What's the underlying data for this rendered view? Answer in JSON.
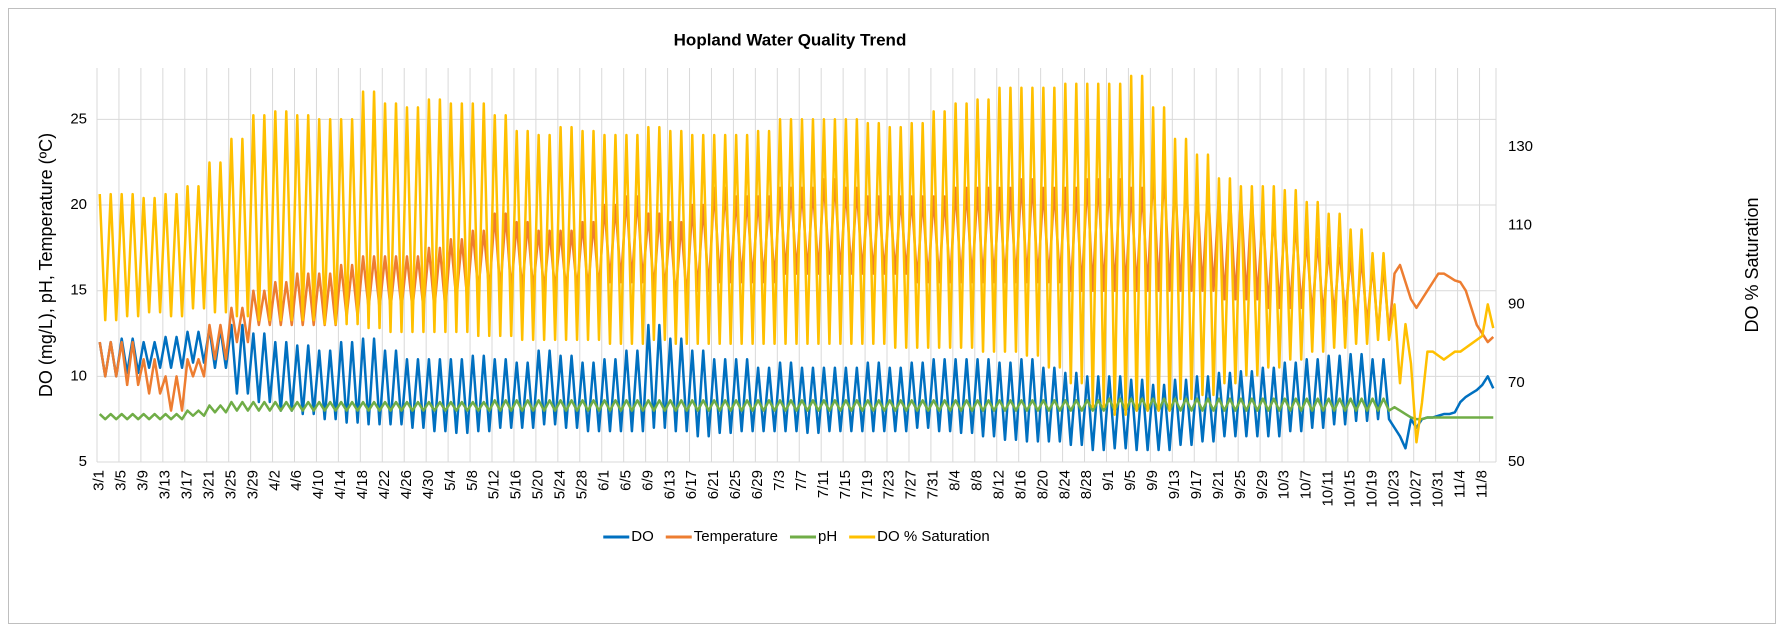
{
  "chart_data": {
    "type": "line",
    "title": "Hopland Water Quality Trend",
    "y_label": "DO (mg/L), pH, Temperature (ºC)",
    "y2_label": "DO % Saturation",
    "ylim": [
      5,
      28
    ],
    "yticks": [
      5,
      10,
      15,
      20,
      25
    ],
    "y2lim": [
      50,
      150
    ],
    "y2ticks": [
      50,
      70,
      90,
      110,
      130
    ],
    "grid": true,
    "legend": "bottom",
    "categories": [
      "3/1",
      null,
      null,
      null,
      "3/5",
      null,
      null,
      null,
      "3/9",
      null,
      null,
      null,
      "3/13",
      null,
      null,
      null,
      "3/17",
      null,
      null,
      null,
      "3/21",
      null,
      null,
      null,
      "3/25",
      null,
      null,
      null,
      "3/29",
      null,
      null,
      null,
      "4/2",
      null,
      null,
      null,
      "4/6",
      null,
      null,
      null,
      "4/10",
      null,
      null,
      null,
      "4/14",
      null,
      null,
      null,
      "4/18",
      null,
      null,
      null,
      "4/22",
      null,
      null,
      null,
      "4/26",
      null,
      null,
      null,
      "4/30",
      null,
      null,
      null,
      "5/4",
      null,
      null,
      null,
      "5/8",
      null,
      null,
      null,
      "5/12",
      null,
      null,
      null,
      "5/16",
      null,
      null,
      null,
      "5/20",
      null,
      null,
      null,
      "5/24",
      null,
      null,
      null,
      "5/28",
      null,
      null,
      null,
      "6/1",
      null,
      null,
      null,
      "6/5",
      null,
      null,
      null,
      "6/9",
      null,
      null,
      null,
      "6/13",
      null,
      null,
      null,
      "6/17",
      null,
      null,
      null,
      "6/21",
      null,
      null,
      null,
      "6/25",
      null,
      null,
      null,
      "6/29",
      null,
      null,
      null,
      "7/3",
      null,
      null,
      null,
      "7/7",
      null,
      null,
      null,
      "7/11",
      null,
      null,
      null,
      "7/15",
      null,
      null,
      null,
      "7/19",
      null,
      null,
      null,
      "7/23",
      null,
      null,
      null,
      "7/27",
      null,
      null,
      null,
      "7/31",
      null,
      null,
      null,
      "8/4",
      null,
      null,
      null,
      "8/8",
      null,
      null,
      null,
      "8/12",
      null,
      null,
      null,
      "8/16",
      null,
      null,
      null,
      "8/20",
      null,
      null,
      null,
      "8/24",
      null,
      null,
      null,
      "8/28",
      null,
      null,
      null,
      "9/1",
      null,
      null,
      null,
      "9/5",
      null,
      null,
      null,
      "9/9",
      null,
      null,
      null,
      "9/13",
      null,
      null,
      null,
      "9/17",
      null,
      null,
      null,
      "9/21",
      null,
      null,
      null,
      "9/25",
      null,
      null,
      null,
      "9/29",
      null,
      null,
      null,
      "10/3",
      null,
      null,
      null,
      "10/7",
      null,
      null,
      null,
      "10/11",
      null,
      null,
      null,
      "10/15",
      null,
      null,
      null,
      "10/19",
      null,
      null,
      null,
      "10/23",
      null,
      null,
      null,
      "10/27",
      null,
      null,
      null,
      "10/31",
      null,
      null,
      null,
      "11/4",
      null,
      null,
      null,
      "11/8",
      null,
      null
    ],
    "series": [
      {
        "name": "DO",
        "color": "#0070c0",
        "values": [
          12,
          10,
          12,
          10,
          12.2,
          10.2,
          12.2,
          10.2,
          12,
          10.5,
          12,
          10.5,
          12.3,
          10.5,
          12.3,
          10.5,
          12.6,
          10.8,
          12.6,
          10.8,
          12.8,
          10.5,
          12.8,
          10.5,
          13,
          9,
          13,
          9,
          12.5,
          8.5,
          12.5,
          8.5,
          12,
          8,
          12,
          8,
          11.8,
          7.8,
          11.8,
          7.8,
          11.5,
          7.5,
          11.5,
          7.5,
          12,
          7.3,
          12,
          7.3,
          12.2,
          7.2,
          12.2,
          7.2,
          11.5,
          7.2,
          11.5,
          7.2,
          11,
          7,
          11,
          7,
          11,
          6.8,
          11,
          6.8,
          11,
          6.7,
          11,
          6.7,
          11.2,
          6.8,
          11.2,
          6.8,
          11,
          7,
          11,
          7,
          10.8,
          7,
          10.8,
          7,
          11.5,
          7.2,
          11.5,
          7.2,
          11.2,
          7,
          11.2,
          7,
          10.8,
          6.8,
          10.8,
          6.8,
          11,
          6.8,
          11,
          6.8,
          11.5,
          6.8,
          11.5,
          6.8,
          13,
          7,
          13,
          7,
          12.2,
          6.8,
          12.2,
          6.8,
          11.5,
          6.5,
          11.5,
          6.5,
          11,
          6.7,
          11,
          6.7,
          11,
          6.8,
          11,
          6.8,
          10.5,
          6.8,
          10.5,
          6.8,
          10.8,
          6.8,
          10.8,
          6.8,
          10.5,
          6.7,
          10.5,
          6.7,
          10.5,
          6.8,
          10.5,
          6.8,
          10.5,
          6.8,
          10.5,
          6.8,
          10.8,
          6.8,
          10.8,
          6.8,
          10.5,
          6.8,
          10.5,
          6.8,
          10.8,
          7,
          10.8,
          7,
          11,
          6.8,
          11,
          6.8,
          11,
          6.7,
          11,
          6.7,
          11,
          6.5,
          11,
          6.5,
          10.8,
          6.3,
          10.8,
          6.3,
          11,
          6.2,
          11,
          6.2,
          10.5,
          6.2,
          10.5,
          6.2,
          10.2,
          6,
          10.2,
          6,
          10,
          5.7,
          10,
          5.7,
          10,
          5.8,
          10,
          5.8,
          9.8,
          5.7,
          9.8,
          5.7,
          9.5,
          5.7,
          9.5,
          5.7,
          9.8,
          6,
          9.8,
          6,
          10,
          6.2,
          10,
          6.2,
          10.2,
          6.5,
          10.2,
          6.5,
          10.3,
          6.5,
          10.3,
          6.5,
          10.5,
          6.5,
          10.5,
          6.5,
          10.8,
          6.8,
          10.8,
          6.8,
          11,
          7,
          11,
          7,
          11.2,
          7.2,
          11.2,
          7.2,
          11.3,
          7.4,
          11.3,
          7.4,
          11,
          7.5,
          11,
          7.5,
          7,
          6.5,
          5.8,
          7.5,
          7,
          7.5,
          7.6,
          7.6,
          7.7,
          7.8,
          7.8,
          7.9,
          8.5,
          8.8,
          9,
          9.2,
          9.5,
          10,
          9.3
        ]
      },
      {
        "name": "Temperature",
        "color": "#ed7d31",
        "values": [
          12,
          10,
          12,
          10,
          12,
          9.5,
          12,
          9.5,
          11,
          9,
          11,
          9,
          10,
          8,
          10,
          8,
          11,
          10,
          11,
          10,
          13,
          11,
          13,
          11,
          14,
          12,
          14,
          12,
          15,
          13,
          15,
          13,
          15.5,
          13,
          15.5,
          13,
          16,
          13,
          16,
          13,
          16,
          13,
          16,
          13,
          16.5,
          13.5,
          16.5,
          13.5,
          17,
          14,
          17,
          14,
          17,
          14,
          17,
          14,
          17,
          14,
          17,
          14,
          17.5,
          14,
          17.5,
          14,
          18,
          14.5,
          18,
          14.5,
          18.5,
          15,
          18.5,
          15,
          19.5,
          15,
          19.5,
          15,
          19,
          15,
          19,
          15,
          18.5,
          15,
          18.5,
          15,
          18.5,
          15,
          18.5,
          15,
          19,
          15,
          19,
          15,
          20,
          15.5,
          20,
          15.5,
          20.5,
          15.5,
          20.5,
          15.5,
          19.5,
          15,
          19.5,
          15,
          19,
          14.5,
          19,
          14.5,
          20,
          15,
          20,
          15,
          21,
          15.5,
          21,
          15.5,
          20.5,
          15.5,
          20.5,
          15.5,
          20.5,
          15.5,
          20.5,
          15.5,
          21,
          16,
          21,
          16,
          21,
          16,
          21,
          16,
          21.5,
          16,
          21.5,
          16,
          21,
          16,
          21,
          16,
          20.5,
          16,
          20.5,
          16,
          20.5,
          16,
          20.5,
          16,
          20.5,
          15.5,
          20.5,
          15.5,
          20.5,
          15.5,
          20.5,
          15.5,
          21,
          15.5,
          21,
          15.5,
          21,
          15.5,
          21,
          15.5,
          21,
          15.5,
          21,
          15.5,
          21.5,
          15.5,
          21.5,
          15.5,
          21,
          15.5,
          21,
          15.5,
          21,
          15,
          21,
          15,
          21.5,
          15,
          21.5,
          15,
          21.5,
          15,
          21.5,
          15,
          21,
          15,
          21,
          15,
          22,
          15,
          22,
          15,
          21.5,
          15,
          21.5,
          15,
          21,
          15,
          21,
          15,
          20.5,
          14.5,
          20.5,
          14.5,
          20.5,
          14.5,
          20.5,
          14.5,
          19.5,
          14,
          19.5,
          14,
          19,
          14,
          19,
          14,
          18,
          13.5,
          18,
          13.5,
          17.5,
          13.5,
          17.5,
          13.5,
          17,
          13,
          17,
          13,
          16.5,
          12.5,
          16.5,
          12.5,
          16,
          16.5,
          15.5,
          14.5,
          14,
          14.5,
          15,
          15.5,
          16,
          16,
          15.8,
          15.6,
          15.5,
          15,
          14,
          13,
          12.5,
          12,
          12.3
        ]
      },
      {
        "name": "pH",
        "color": "#70ad47",
        "values": [
          7.8,
          7.5,
          7.8,
          7.5,
          7.8,
          7.5,
          7.8,
          7.5,
          7.8,
          7.5,
          7.8,
          7.5,
          7.8,
          7.5,
          7.8,
          7.5,
          8,
          7.7,
          8,
          7.7,
          8.3,
          7.9,
          8.3,
          7.9,
          8.5,
          8,
          8.5,
          8,
          8.5,
          8,
          8.5,
          8,
          8.5,
          8,
          8.5,
          8,
          8.5,
          8,
          8.5,
          8,
          8.5,
          8,
          8.5,
          8,
          8.5,
          8,
          8.5,
          8,
          8.5,
          8,
          8.5,
          8,
          8.5,
          8,
          8.5,
          8,
          8.5,
          8,
          8.5,
          8,
          8.5,
          8,
          8.5,
          8,
          8.5,
          8,
          8.5,
          8,
          8.5,
          8,
          8.5,
          8,
          8.6,
          8,
          8.6,
          8,
          8.6,
          8,
          8.6,
          8,
          8.6,
          8,
          8.6,
          8,
          8.6,
          8,
          8.6,
          8,
          8.6,
          8,
          8.6,
          8,
          8.6,
          8,
          8.6,
          8,
          8.6,
          8,
          8.6,
          8,
          8.6,
          8,
          8.6,
          8,
          8.6,
          8,
          8.6,
          8,
          8.6,
          8,
          8.6,
          8,
          8.6,
          8,
          8.6,
          8,
          8.6,
          8,
          8.6,
          8,
          8.6,
          8,
          8.6,
          8,
          8.6,
          8,
          8.6,
          8,
          8.6,
          8,
          8.6,
          8,
          8.6,
          8,
          8.6,
          8,
          8.6,
          8,
          8.6,
          8,
          8.6,
          8,
          8.6,
          8,
          8.6,
          8,
          8.6,
          8,
          8.6,
          8,
          8.6,
          8,
          8.6,
          8,
          8.6,
          8,
          8.6,
          8,
          8.6,
          8,
          8.6,
          8,
          8.6,
          8,
          8.6,
          8,
          8.6,
          8,
          8.6,
          8,
          8.6,
          8,
          8.6,
          8,
          8.6,
          8,
          8.6,
          8,
          8.6,
          8,
          8.6,
          8,
          8.6,
          8,
          8.7,
          8,
          8.7,
          8,
          8.7,
          8,
          8.7,
          8,
          8.7,
          8,
          8.7,
          8,
          8.7,
          8,
          8.7,
          8,
          8.7,
          8,
          8.7,
          8,
          8.7,
          8,
          8.7,
          8,
          8.7,
          8,
          8.7,
          8,
          8.7,
          8,
          8.7,
          8,
          8.7,
          8,
          8.7,
          8,
          8.7,
          8,
          8.7,
          8,
          8.7,
          8,
          8.7,
          8,
          8.7,
          8,
          8.7,
          8,
          8.7,
          8,
          8.7,
          8,
          8.2,
          8,
          7.8,
          7.6,
          7.5,
          7.5,
          7.6,
          7.6,
          7.6,
          7.6,
          7.6,
          7.6,
          7.6,
          7.6,
          7.6,
          7.6,
          7.6,
          7.6,
          7.6
        ]
      },
      {
        "name": "DO % Saturation",
        "color": "#ffc000",
        "axis": "y2",
        "values": [
          118,
          86,
          118,
          86,
          118,
          87,
          118,
          87,
          117,
          88,
          117,
          88,
          118,
          87,
          118,
          87,
          120,
          89,
          120,
          89,
          126,
          88,
          126,
          88,
          132,
          87,
          132,
          87,
          138,
          86,
          138,
          86,
          139,
          86,
          139,
          86,
          138,
          86,
          138,
          86,
          137,
          85,
          137,
          85,
          137,
          85,
          137,
          85,
          144,
          84,
          144,
          84,
          141,
          83,
          141,
          83,
          140,
          83,
          140,
          83,
          142,
          83,
          142,
          83,
          141,
          83,
          141,
          83,
          141,
          82,
          141,
          82,
          138,
          82,
          138,
          82,
          134,
          81,
          134,
          81,
          133,
          81,
          133,
          81,
          135,
          81,
          135,
          81,
          134,
          81,
          134,
          81,
          133,
          80,
          133,
          80,
          133,
          80,
          133,
          80,
          135,
          81,
          135,
          81,
          134,
          80,
          134,
          80,
          133,
          80,
          133,
          80,
          133,
          80,
          133,
          80,
          133,
          80,
          133,
          80,
          134,
          80,
          134,
          80,
          137,
          80,
          137,
          80,
          137,
          80,
          137,
          80,
          137,
          80,
          137,
          80,
          137,
          80,
          137,
          80,
          136,
          80,
          136,
          80,
          135,
          79,
          135,
          79,
          136,
          79,
          136,
          79,
          139,
          79,
          139,
          79,
          141,
          79,
          141,
          79,
          142,
          78,
          142,
          78,
          145,
          78,
          145,
          78,
          145,
          77,
          145,
          77,
          145,
          74,
          145,
          74,
          146,
          70,
          146,
          70,
          146,
          64,
          146,
          64,
          146,
          62,
          146,
          62,
          148,
          63,
          148,
          63,
          140,
          63,
          140,
          63,
          132,
          66,
          132,
          66,
          128,
          67,
          128,
          67,
          122,
          70,
          122,
          70,
          120,
          72,
          120,
          72,
          120,
          74,
          120,
          74,
          119,
          76,
          119,
          76,
          116,
          78,
          116,
          78,
          113,
          79,
          113,
          79,
          109,
          80,
          109,
          80,
          103,
          81,
          103,
          81,
          90,
          70,
          85,
          75,
          55,
          65,
          78,
          78,
          77,
          76,
          77,
          78,
          78,
          79,
          80,
          81,
          82,
          90,
          84
        ]
      }
    ]
  }
}
